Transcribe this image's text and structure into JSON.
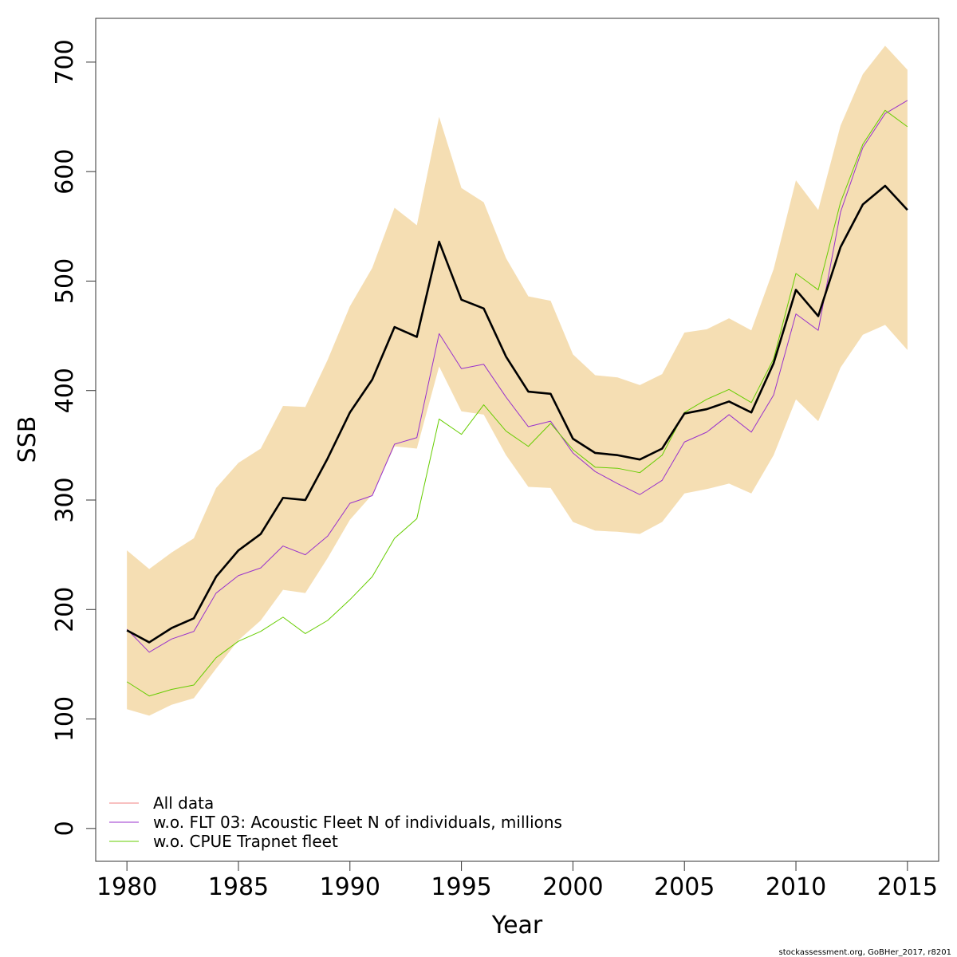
{
  "chart_data": {
    "type": "line",
    "xlabel": "Year",
    "ylabel": "SSB",
    "xlim": [
      1978.6,
      2016.4
    ],
    "ylim": [
      -30,
      740
    ],
    "xticks": [
      1980,
      1985,
      1990,
      1995,
      2000,
      2005,
      2010,
      2015
    ],
    "yticks": [
      0,
      100,
      200,
      300,
      400,
      500,
      600,
      700
    ],
    "x": [
      1980,
      1981,
      1982,
      1983,
      1984,
      1985,
      1986,
      1987,
      1988,
      1989,
      1990,
      1991,
      1992,
      1993,
      1994,
      1995,
      1996,
      1997,
      1998,
      1999,
      2000,
      2001,
      2002,
      2003,
      2004,
      2005,
      2006,
      2007,
      2008,
      2009,
      2010,
      2011,
      2012,
      2013,
      2014,
      2015
    ],
    "band": {
      "color": "#F5DEB3",
      "lower": [
        109,
        103,
        113,
        119,
        146,
        172,
        190,
        218,
        215,
        247,
        282,
        305,
        349,
        347,
        422,
        381,
        378,
        341,
        312,
        311,
        280,
        272,
        271,
        269,
        280,
        306,
        310,
        315,
        306,
        341,
        392,
        372,
        421,
        451,
        460,
        437
      ],
      "upper": [
        254,
        237,
        252,
        265,
        311,
        334,
        347,
        386,
        385,
        428,
        477,
        512,
        567,
        551,
        650,
        585,
        572,
        521,
        486,
        482,
        433,
        414,
        412,
        405,
        415,
        453,
        456,
        466,
        455,
        511,
        592,
        565,
        642,
        689,
        715,
        693
      ]
    },
    "series": [
      {
        "name": "All data",
        "color": "#000000",
        "values": [
          181,
          170,
          183,
          192,
          230,
          254,
          269,
          302,
          300,
          338,
          380,
          410,
          458,
          449,
          536,
          483,
          475,
          431,
          399,
          397,
          356,
          343,
          341,
          337,
          347,
          379,
          383,
          390,
          380,
          425,
          492,
          468,
          531,
          570,
          587,
          565
        ]
      },
      {
        "name": "w.o. FLT 03: Acoustic Fleet   N of individuals, millions",
        "color": "#9932CC",
        "values": [
          182,
          161,
          173,
          180,
          215,
          231,
          238,
          258,
          250,
          267,
          297,
          304,
          351,
          357,
          452,
          420,
          424,
          394,
          367,
          372,
          343,
          326,
          315,
          305,
          318,
          353,
          362,
          378,
          362,
          396,
          470,
          455,
          563,
          622,
          653,
          665
        ]
      },
      {
        "name": "w.o. CPUE Trapnet fleet",
        "color": "#66CD00",
        "values": [
          134,
          121,
          127,
          131,
          156,
          171,
          180,
          193,
          178,
          190,
          209,
          230,
          265,
          283,
          374,
          360,
          387,
          363,
          349,
          370,
          346,
          330,
          329,
          325,
          341,
          380,
          392,
          401,
          389,
          429,
          507,
          492,
          572,
          625,
          656,
          641
        ]
      }
    ],
    "legend": {
      "placement": "bottom-left",
      "entries": [
        {
          "label": "All data",
          "color": "#F08080"
        },
        {
          "label": "w.o. FLT 03: Acoustic Fleet   N of individuals, millions",
          "color": "#9932CC"
        },
        {
          "label": "w.o. CPUE Trapnet fleet",
          "color": "#66CD00"
        }
      ]
    },
    "grid": false
  },
  "credit": "stockassessment.org, GoBHer_2017, r8201"
}
